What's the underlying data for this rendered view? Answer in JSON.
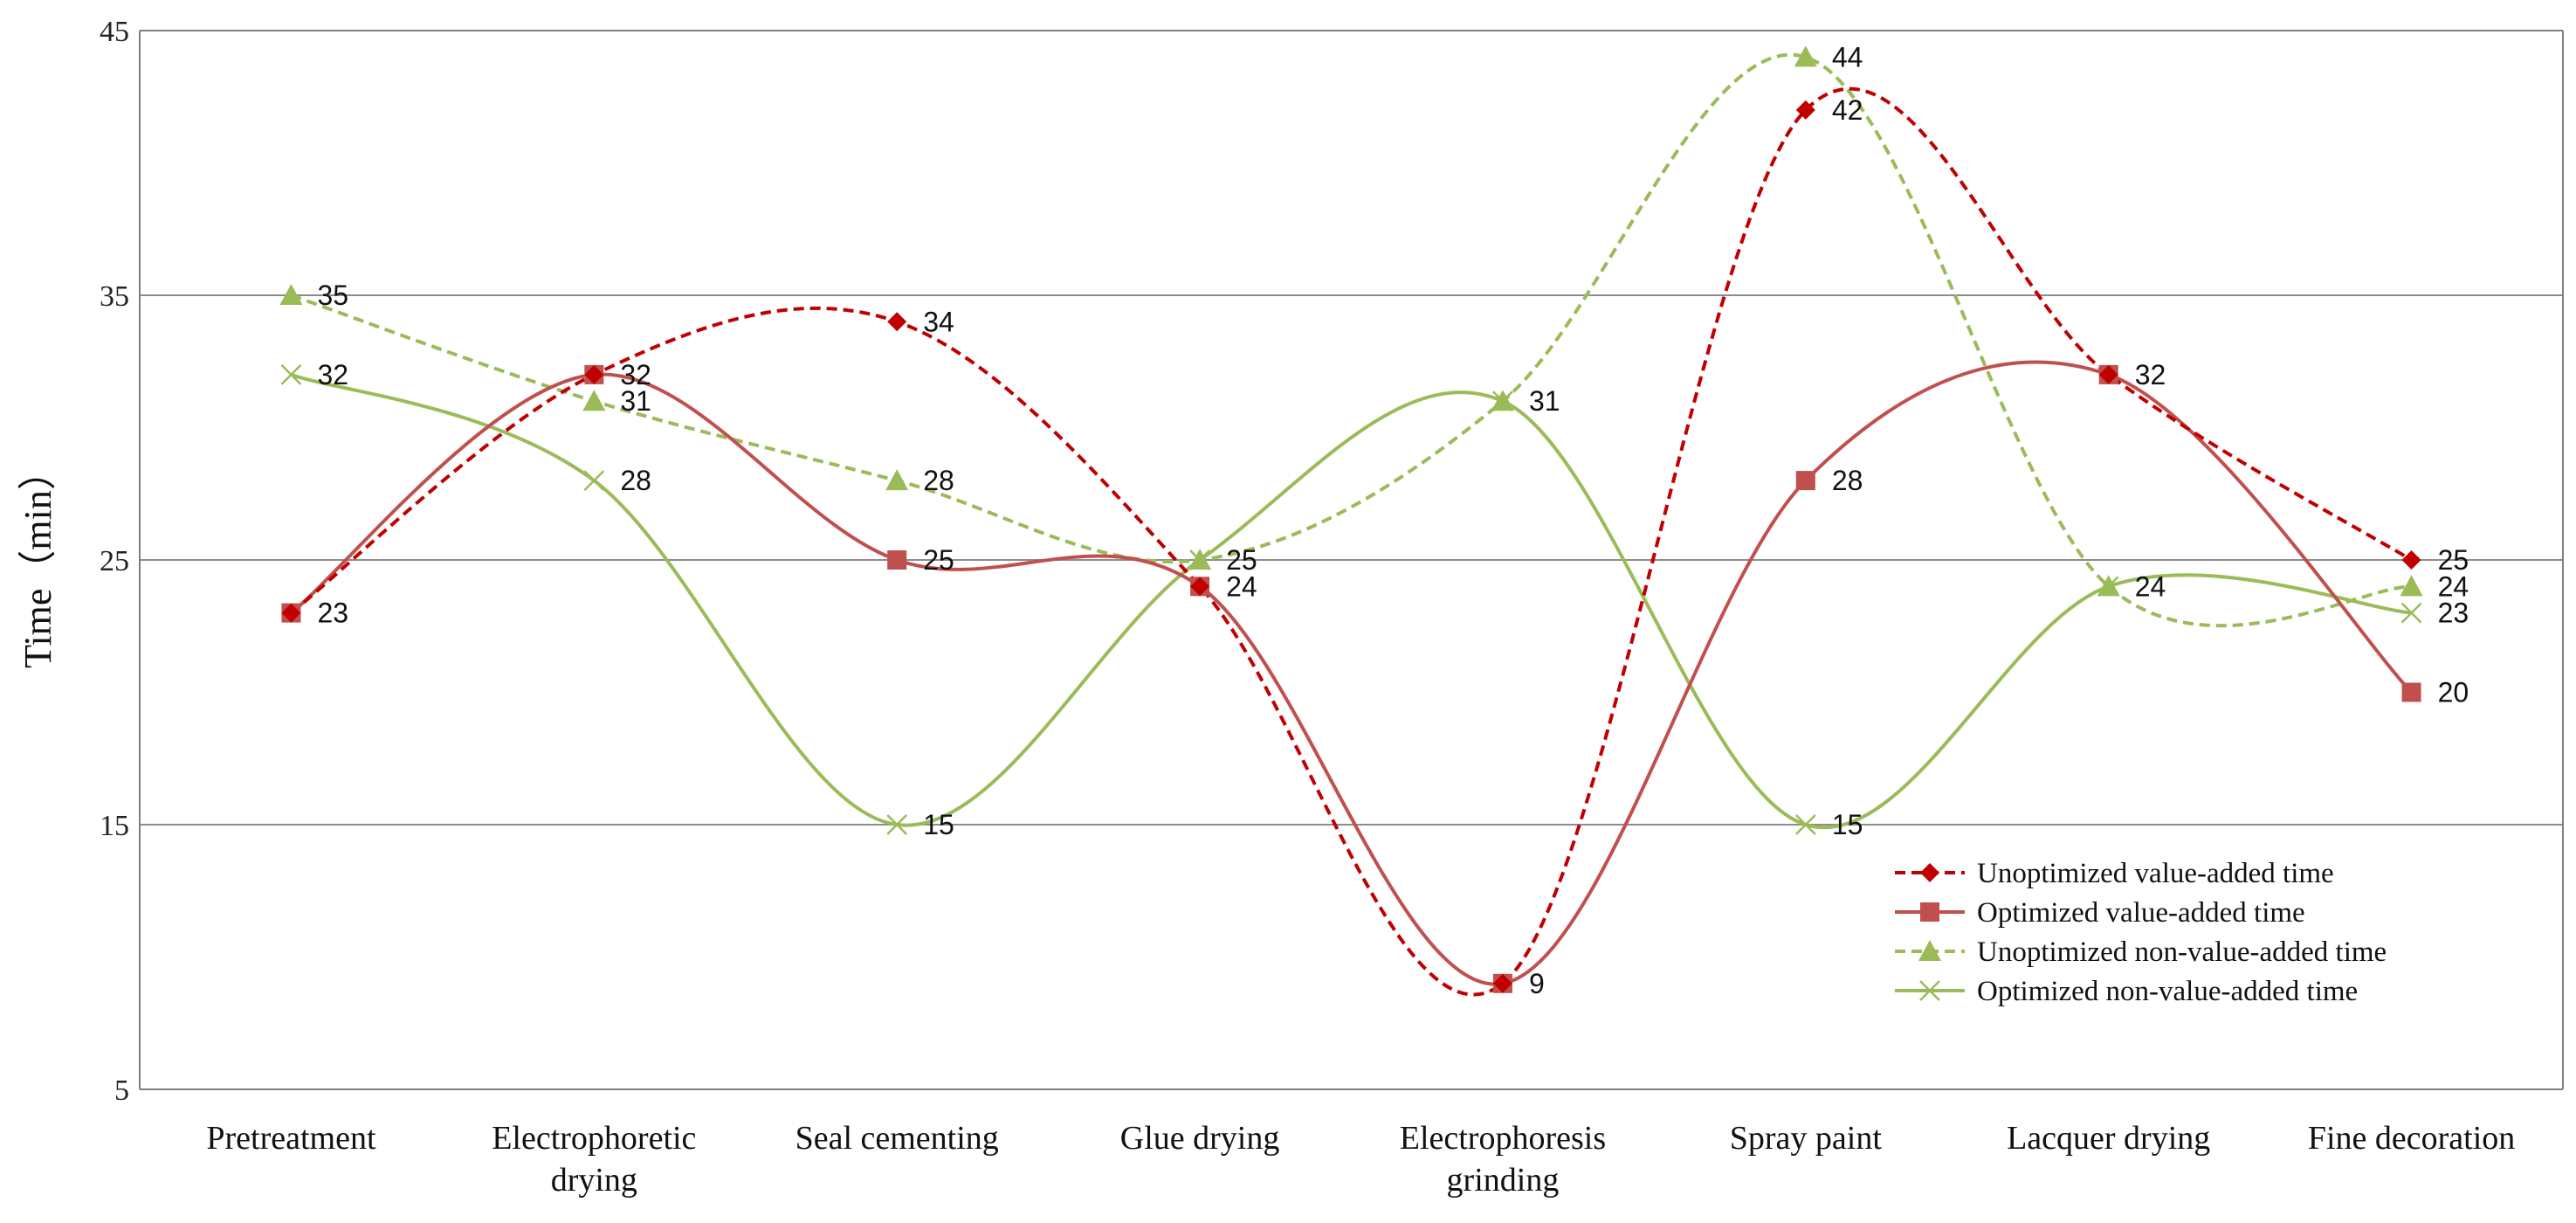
{
  "chart_data": {
    "type": "line",
    "title": "",
    "xlabel": "",
    "ylabel": "Time（min）",
    "ylim": [
      5,
      45
    ],
    "yticks": [
      5,
      15,
      25,
      35,
      45
    ],
    "grid": "horizontal",
    "legend_position": "bottom-right",
    "categories": [
      [
        "Pretreatment"
      ],
      [
        "Electrophoretic",
        "drying"
      ],
      [
        "Seal cementing"
      ],
      [
        "Glue drying"
      ],
      [
        "Electrophoresis",
        "grinding"
      ],
      [
        "Spray paint"
      ],
      [
        "Lacquer drying"
      ],
      [
        "Fine decoration"
      ]
    ],
    "series": [
      {
        "name": "Unoptimized value-added time",
        "values": [
          23,
          32,
          34,
          24,
          9,
          42,
          32,
          25
        ],
        "color": "#c00000",
        "dash": true,
        "marker": "diamond",
        "marker_color": "#c00000"
      },
      {
        "name": "Optimized value-added time",
        "values": [
          23,
          32,
          25,
          24,
          9,
          28,
          32,
          20
        ],
        "color": "#c0504d",
        "dash": false,
        "marker": "square",
        "marker_color": "#c0504d"
      },
      {
        "name": "Unoptimized non-value-added time",
        "values": [
          35,
          31,
          28,
          25,
          31,
          44,
          24,
          24
        ],
        "color": "#9bbb59",
        "dash": true,
        "marker": "triangle",
        "marker_color": "#9bbb59"
      },
      {
        "name": "Optimized non-value-added time",
        "values": [
          32,
          28,
          15,
          25,
          31,
          15,
          24,
          23
        ],
        "color": "#9bbb59",
        "dash": false,
        "marker": "x",
        "marker_color": "#9bbb59"
      }
    ],
    "data_labels": [
      {
        "series": 0,
        "index": 2,
        "text": "34"
      },
      {
        "series": 0,
        "index": 5,
        "text": "42"
      },
      {
        "series": 0,
        "index": 7,
        "text": "25"
      },
      {
        "series": 1,
        "index": 0,
        "text": "23"
      },
      {
        "series": 1,
        "index": 1,
        "text": "32"
      },
      {
        "series": 1,
        "index": 2,
        "text": "25"
      },
      {
        "series": 1,
        "index": 3,
        "text": "24"
      },
      {
        "series": 1,
        "index": 4,
        "text": "9"
      },
      {
        "series": 1,
        "index": 5,
        "text": "28"
      },
      {
        "series": 1,
        "index": 6,
        "text": "32"
      },
      {
        "series": 1,
        "index": 7,
        "text": "20"
      },
      {
        "series": 2,
        "index": 0,
        "text": "35"
      },
      {
        "series": 2,
        "index": 1,
        "text": "31"
      },
      {
        "series": 2,
        "index": 2,
        "text": "28"
      },
      {
        "series": 2,
        "index": 3,
        "text": "25"
      },
      {
        "series": 2,
        "index": 4,
        "text": "31"
      },
      {
        "series": 2,
        "index": 5,
        "text": "44"
      },
      {
        "series": 2,
        "index": 6,
        "text": "24"
      },
      {
        "series": 2,
        "index": 7,
        "text": "24"
      },
      {
        "series": 3,
        "index": 0,
        "text": "32"
      },
      {
        "series": 3,
        "index": 1,
        "text": "28"
      },
      {
        "series": 3,
        "index": 2,
        "text": "15"
      },
      {
        "series": 3,
        "index": 5,
        "text": "15"
      },
      {
        "series": 3,
        "index": 7,
        "text": "23"
      }
    ]
  }
}
